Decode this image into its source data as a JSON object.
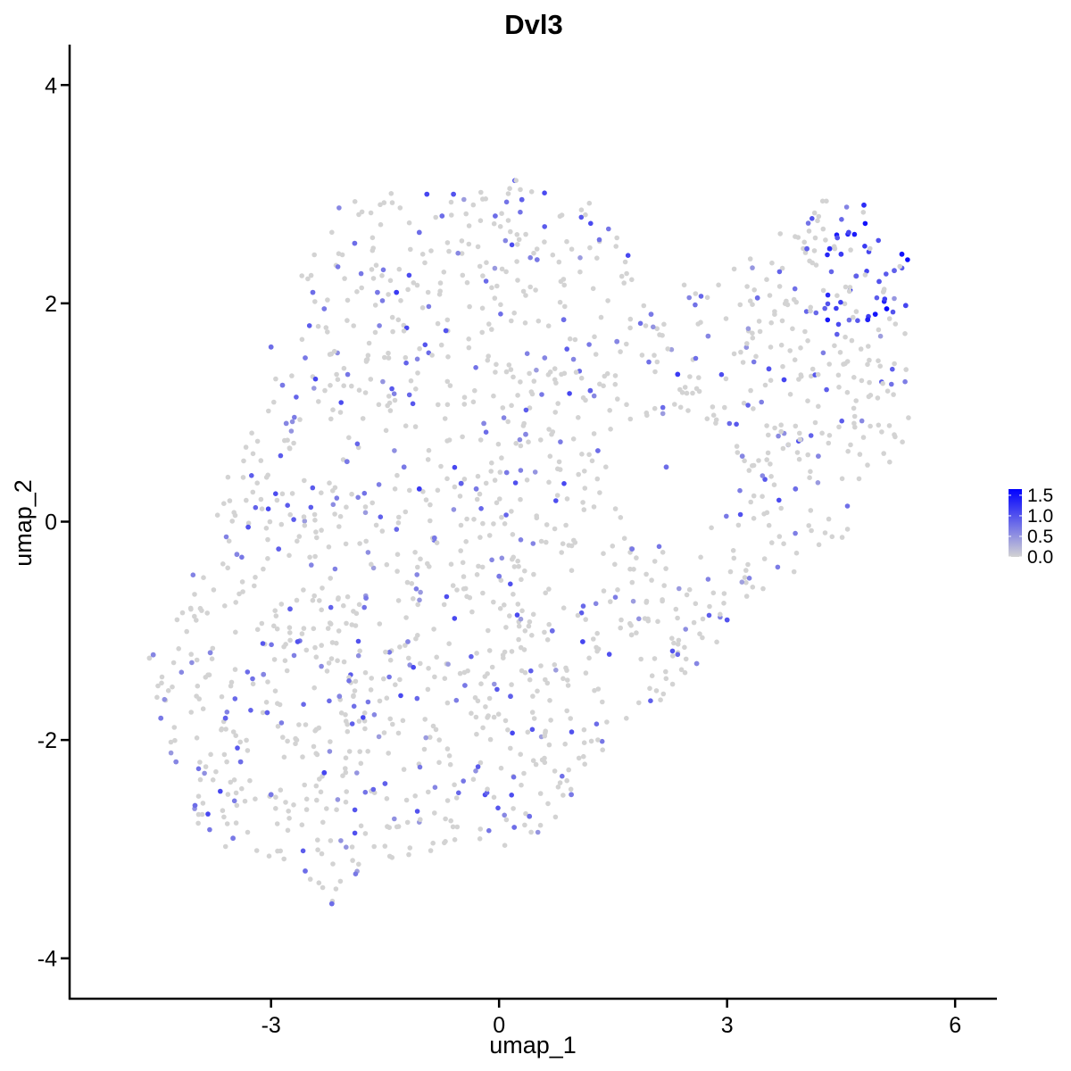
{
  "chart_data": {
    "type": "scatter",
    "title": "Dvl3",
    "xlabel": "umap_1",
    "ylabel": "umap_2",
    "xlim": [
      -5.65,
      6.55
    ],
    "ylim": [
      -4.37,
      4.37
    ],
    "x_ticks": [
      -3,
      0,
      3,
      6
    ],
    "x_tick_labels": [
      "-3",
      "0",
      "3",
      "6"
    ],
    "y_ticks": [
      -4,
      -2,
      0,
      2,
      4
    ],
    "y_tick_labels": [
      "-4",
      "-2",
      "0",
      "2",
      "4"
    ],
    "grid": false,
    "legend": {
      "placement": "right",
      "kind": "colorbar",
      "min": 0.0,
      "max": 1.65,
      "breaks": [
        0.0,
        0.5,
        1.0,
        1.5
      ],
      "labels": [
        "0.0",
        "0.5",
        "1.0",
        "1.5"
      ],
      "color_low": "#d3d3d3",
      "color_high": "#0000ff"
    },
    "point_count_estimate": 1700,
    "region_note": "cells form a broad band from lower-left (-4.6,-1.3) to upper-right (5.3,2.4); highest expression concentrated near (4.4 to 5.3, 1.8 to 2.8)",
    "points": [
      {
        "x": -4.6,
        "y": -1.25,
        "v": 0.0
      },
      {
        "x": -4.55,
        "y": -1.22,
        "v": 0.6
      },
      {
        "x": -4.45,
        "y": -1.8,
        "v": 0.7
      },
      {
        "x": -4.25,
        "y": -2.2,
        "v": 0.6
      },
      {
        "x": -4.0,
        "y": -2.6,
        "v": 0.8
      },
      {
        "x": -3.8,
        "y": -1.2,
        "v": 0.6
      },
      {
        "x": -3.6,
        "y": -1.8,
        "v": 0.9
      },
      {
        "x": -3.5,
        "y": -2.9,
        "v": 0.7
      },
      {
        "x": -3.45,
        "y": -0.3,
        "v": 0.6
      },
      {
        "x": -3.4,
        "y": -2.2,
        "v": 0.8
      },
      {
        "x": -3.3,
        "y": -0.05,
        "v": 1.0
      },
      {
        "x": -3.1,
        "y": -1.4,
        "v": 0.6
      },
      {
        "x": -3.05,
        "y": -1.75,
        "v": 0.9
      },
      {
        "x": -3.0,
        "y": -2.5,
        "v": 0.7
      },
      {
        "x": -3.0,
        "y": 1.6,
        "v": 0.8
      },
      {
        "x": -2.9,
        "y": -0.25,
        "v": 0.9
      },
      {
        "x": -2.85,
        "y": 1.25,
        "v": 0.7
      },
      {
        "x": -2.8,
        "y": 0.9,
        "v": 0.6
      },
      {
        "x": -2.75,
        "y": -0.8,
        "v": 0.9
      },
      {
        "x": -2.65,
        "y": -1.1,
        "v": 1.0
      },
      {
        "x": -2.55,
        "y": 1.5,
        "v": 0.7
      },
      {
        "x": -2.55,
        "y": -3.2,
        "v": 0.8
      },
      {
        "x": -2.45,
        "y": 2.1,
        "v": 0.8
      },
      {
        "x": -2.3,
        "y": -2.3,
        "v": 1.1
      },
      {
        "x": -2.3,
        "y": 1.95,
        "v": 0.7
      },
      {
        "x": -2.2,
        "y": -3.5,
        "v": 0.8
      },
      {
        "x": -2.1,
        "y": -1.6,
        "v": 0.6
      },
      {
        "x": -2.0,
        "y": 0.55,
        "v": 0.7
      },
      {
        "x": -1.9,
        "y": 2.55,
        "v": 0.8
      },
      {
        "x": -1.75,
        "y": -0.7,
        "v": 0.7
      },
      {
        "x": -1.6,
        "y": 2.1,
        "v": 0.7
      },
      {
        "x": -1.5,
        "y": -2.4,
        "v": 0.9
      },
      {
        "x": -1.35,
        "y": 2.1,
        "v": 1.2
      },
      {
        "x": -1.25,
        "y": 0.5,
        "v": 0.7
      },
      {
        "x": -1.2,
        "y": -1.1,
        "v": 0.6
      },
      {
        "x": -1.05,
        "y": 2.65,
        "v": 0.8
      },
      {
        "x": -1.05,
        "y": 0.3,
        "v": 1.2
      },
      {
        "x": -0.95,
        "y": 3.0,
        "v": 1.1
      },
      {
        "x": -0.85,
        "y": -0.15,
        "v": 0.7
      },
      {
        "x": -0.75,
        "y": 2.8,
        "v": 0.8
      },
      {
        "x": -0.7,
        "y": 1.75,
        "v": 1.0
      },
      {
        "x": -0.6,
        "y": 3.0,
        "v": 1.0
      },
      {
        "x": -0.5,
        "y": 0.35,
        "v": 0.9
      },
      {
        "x": -0.45,
        "y": -1.5,
        "v": 0.7
      },
      {
        "x": -0.3,
        "y": 0.3,
        "v": 0.7
      },
      {
        "x": -0.2,
        "y": 0.9,
        "v": 0.6
      },
      {
        "x": -0.05,
        "y": 2.8,
        "v": 0.8
      },
      {
        "x": 0.0,
        "y": -0.5,
        "v": 0.7
      },
      {
        "x": 0.1,
        "y": 0.45,
        "v": 0.7
      },
      {
        "x": 0.15,
        "y": -1.6,
        "v": 0.9
      },
      {
        "x": 0.2,
        "y": -2.8,
        "v": 0.8
      },
      {
        "x": 0.3,
        "y": 2.95,
        "v": 0.9
      },
      {
        "x": 0.35,
        "y": 0.8,
        "v": 0.6
      },
      {
        "x": 0.4,
        "y": -2.7,
        "v": 0.8
      },
      {
        "x": 0.5,
        "y": 2.4,
        "v": 0.7
      },
      {
        "x": 0.6,
        "y": 1.5,
        "v": 0.6
      },
      {
        "x": 0.7,
        "y": -1.0,
        "v": 0.8
      },
      {
        "x": 0.85,
        "y": 1.85,
        "v": 0.8
      },
      {
        "x": 0.95,
        "y": -2.5,
        "v": 0.7
      },
      {
        "x": 1.1,
        "y": -1.1,
        "v": 1.1
      },
      {
        "x": 1.2,
        "y": 1.2,
        "v": 0.9
      },
      {
        "x": 1.3,
        "y": 0.65,
        "v": 0.8
      },
      {
        "x": 1.55,
        "y": 1.65,
        "v": 0.6
      },
      {
        "x": 1.75,
        "y": -0.25,
        "v": 0.7
      },
      {
        "x": 2.0,
        "y": 1.9,
        "v": 0.7
      },
      {
        "x": 2.2,
        "y": 0.5,
        "v": 0.8
      },
      {
        "x": 2.35,
        "y": 1.35,
        "v": 1.2
      },
      {
        "x": 2.6,
        "y": -1.3,
        "v": 0.6
      },
      {
        "x": 2.75,
        "y": 1.7,
        "v": 0.6
      },
      {
        "x": 3.0,
        "y": -0.9,
        "v": 1.0
      },
      {
        "x": 3.2,
        "y": 0.6,
        "v": 0.6
      },
      {
        "x": 3.4,
        "y": 2.05,
        "v": 0.8
      },
      {
        "x": 3.55,
        "y": 1.4,
        "v": 1.0
      },
      {
        "x": 3.75,
        "y": 1.3,
        "v": 1.1
      },
      {
        "x": 3.9,
        "y": 0.3,
        "v": 0.8
      },
      {
        "x": 4.05,
        "y": 2.5,
        "v": 0.9
      },
      {
        "x": 4.2,
        "y": 0.6,
        "v": 0.6
      },
      {
        "x": 4.35,
        "y": 2.5,
        "v": 1.3
      },
      {
        "x": 4.45,
        "y": 2.6,
        "v": 1.0
      },
      {
        "x": 4.5,
        "y": 2.45,
        "v": 1.2
      },
      {
        "x": 4.6,
        "y": 2.65,
        "v": 1.1
      },
      {
        "x": 4.7,
        "y": 2.25,
        "v": 0.9
      },
      {
        "x": 4.8,
        "y": 2.9,
        "v": 1.3
      },
      {
        "x": 4.85,
        "y": 1.85,
        "v": 1.4
      },
      {
        "x": 4.95,
        "y": 1.9,
        "v": 1.5
      },
      {
        "x": 5.0,
        "y": 2.2,
        "v": 1.0
      },
      {
        "x": 5.1,
        "y": 1.95,
        "v": 1.6
      },
      {
        "x": 5.2,
        "y": 2.3,
        "v": 0.9
      },
      {
        "x": 5.3,
        "y": 2.45,
        "v": 1.5
      },
      {
        "x": 5.35,
        "y": 1.98,
        "v": 1.1
      }
    ]
  }
}
